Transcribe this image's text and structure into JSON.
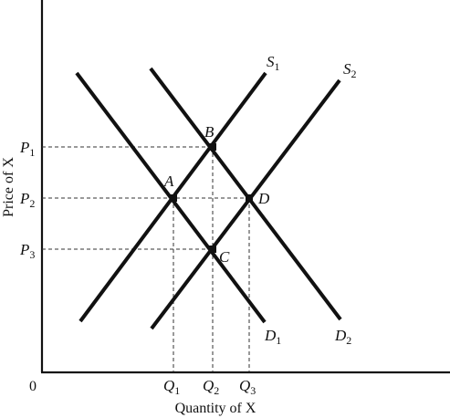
{
  "axes": {
    "origin_label": "0",
    "x_label": "Quantity of X",
    "y_label": "Price of X"
  },
  "curves": {
    "S1": {
      "letter": "S",
      "sub": "1"
    },
    "S2": {
      "letter": "S",
      "sub": "2"
    },
    "D1": {
      "letter": "D",
      "sub": "1"
    },
    "D2": {
      "letter": "D",
      "sub": "2"
    }
  },
  "points": {
    "A": "A",
    "B": "B",
    "C": "C",
    "D": "D"
  },
  "price_levels": [
    {
      "letter": "P",
      "sub": "1"
    },
    {
      "letter": "P",
      "sub": "2"
    },
    {
      "letter": "P",
      "sub": "3"
    }
  ],
  "quantity_levels": [
    {
      "letter": "Q",
      "sub": "1"
    },
    {
      "letter": "Q",
      "sub": "2"
    },
    {
      "letter": "Q",
      "sub": "3"
    }
  ]
}
